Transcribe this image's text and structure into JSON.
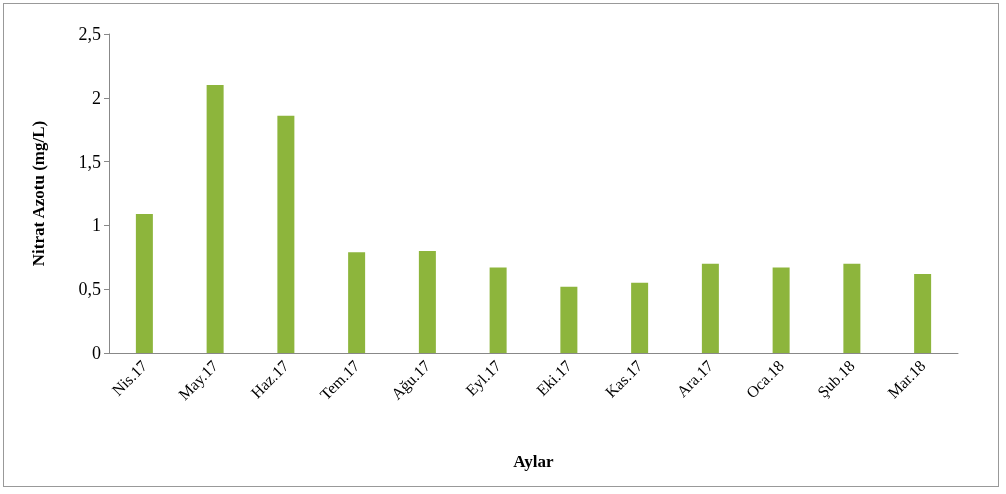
{
  "chart_data": {
    "type": "bar",
    "xlabel": "Aylar",
    "ylabel": "Nitrat Azotu (mg/L)",
    "categories": [
      "Nis.17",
      "May.17",
      "Haz.17",
      "Tem.17",
      "Ağu.17",
      "Eyl.17",
      "Eki.17",
      "Kas.17",
      "Ara.17",
      "Oca.18",
      "Şub.18",
      "Mar.18"
    ],
    "values": [
      1.09,
      2.1,
      1.86,
      0.79,
      0.8,
      0.67,
      0.52,
      0.55,
      0.7,
      0.67,
      0.7,
      0.62
    ],
    "color": "#8db53c",
    "ylim": [
      0,
      2.5
    ],
    "yticks": [
      0,
      {
        "value": 0.5,
        "label": "0,5"
      },
      1,
      {
        "value": 1.5,
        "label": "1,5"
      },
      2,
      {
        "value": 2.5,
        "label": "2,5"
      }
    ],
    "grid": false
  }
}
